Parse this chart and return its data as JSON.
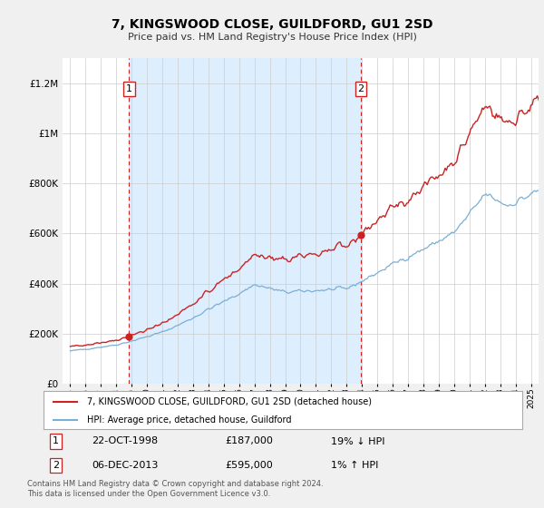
{
  "title": "7, KINGSWOOD CLOSE, GUILDFORD, GU1 2SD",
  "subtitle": "Price paid vs. HM Land Registry's House Price Index (HPI)",
  "bg_color": "#f0f0f0",
  "plot_bg_color": "#ffffff",
  "hpi_color": "#7bafd4",
  "price_color": "#cc2222",
  "fill_color": "#ddeeff",
  "sale1_date": "22-OCT-1998",
  "sale1_price": 187000,
  "sale1_label": "19% ↓ HPI",
  "sale2_date": "06-DEC-2013",
  "sale2_price": 595000,
  "sale2_label": "1% ↑ HPI",
  "sale1_year": 1998.83,
  "sale2_year": 2013.92,
  "ylim_max": 1300000,
  "footer": "Contains HM Land Registry data © Crown copyright and database right 2024.\nThis data is licensed under the Open Government Licence v3.0."
}
